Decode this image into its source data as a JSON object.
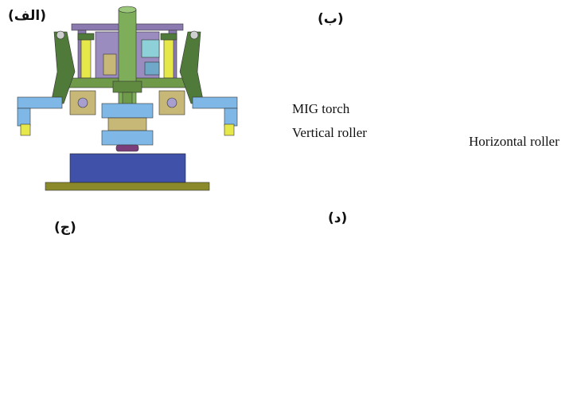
{
  "panels": [
    {
      "id": "a",
      "label": "(الف)"
    },
    {
      "id": "b",
      "label": "(ب)"
    },
    {
      "id": "c",
      "label": "(ج)"
    },
    {
      "id": "d",
      "label": "(د)"
    }
  ],
  "annotations": {
    "mig_torch": "MIG torch",
    "vertical_roller": "Vertical roller",
    "horizontal_roller": "Horizontal roller"
  },
  "colors": {
    "workpiece": "#3f51a8",
    "base_plate": "#8a8a2a",
    "green_arm": "#4f7a3a",
    "torch": "#7fae5a",
    "purple_frame": "#8a7ab0",
    "yellow_cylinder": "#e6e84a",
    "blue_bracket": "#7fb8e6",
    "tan_block": "#c8b878",
    "cyan_box": "#8ed0d8",
    "roller": "#7a3f7a"
  }
}
